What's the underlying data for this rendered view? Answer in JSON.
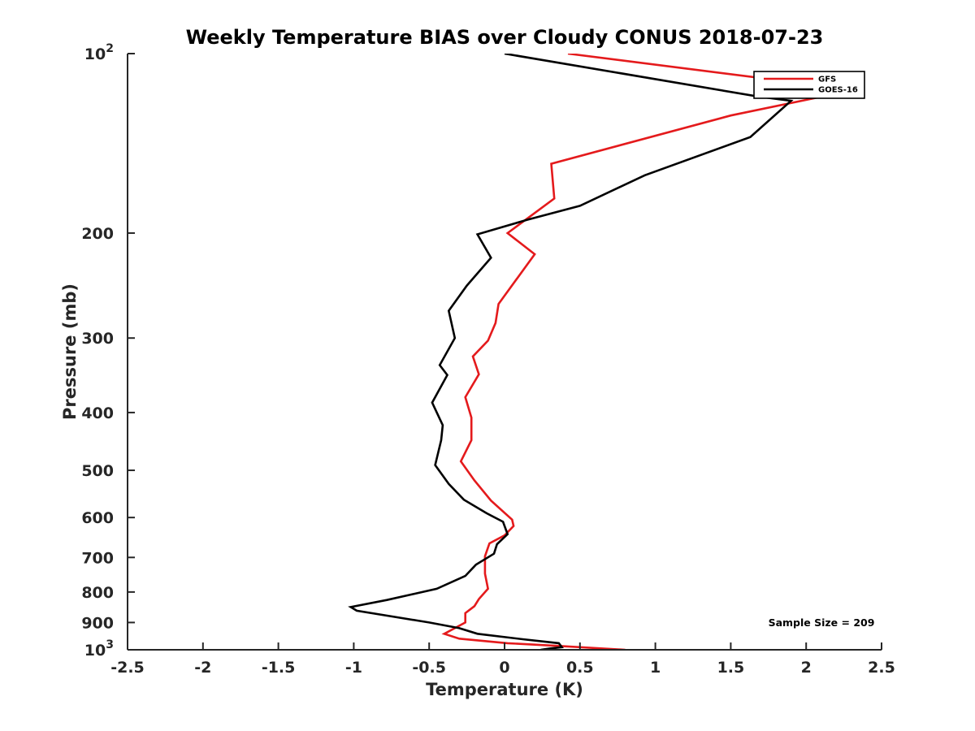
{
  "chart_data": {
    "type": "line",
    "title": "Weekly Temperature BIAS over Cloudy CONUS 2018-07-23",
    "xlabel": "Temperature (K)",
    "ylabel": "Pressure (mb)",
    "xlim": [
      -2.5,
      2.5
    ],
    "ylim": [
      1000,
      100
    ],
    "y_scale": "log",
    "y_reversed": true,
    "grid": false,
    "legend_position": "top-right",
    "x_ticks": [
      -2.5,
      -2,
      -1.5,
      -1,
      -0.5,
      0,
      0.5,
      1,
      1.5,
      2,
      2.5
    ],
    "x_tick_labels": [
      "-2.5",
      "-2",
      "-1.5",
      "-1",
      "-0.5",
      "0",
      "0.5",
      "1",
      "1.5",
      "2",
      "2.5"
    ],
    "y_ticks": [
      100,
      200,
      300,
      400,
      500,
      600,
      700,
      800,
      900,
      1000
    ],
    "y_tick_labels": [
      {
        "base": "10",
        "exp": "2"
      },
      {
        "base": "200",
        "exp": ""
      },
      {
        "base": "300",
        "exp": ""
      },
      {
        "base": "400",
        "exp": ""
      },
      {
        "base": "500",
        "exp": ""
      },
      {
        "base": "600",
        "exp": ""
      },
      {
        "base": "700",
        "exp": ""
      },
      {
        "base": "800",
        "exp": ""
      },
      {
        "base": "900",
        "exp": ""
      },
      {
        "base": "10",
        "exp": "3"
      }
    ],
    "series": [
      {
        "name": "GFS",
        "color": "#e41a1c",
        "points": [
          [
            0.42,
            100
          ],
          [
            2.32,
            115
          ],
          [
            1.5,
            127
          ],
          [
            0.31,
            153
          ],
          [
            0.33,
            175
          ],
          [
            0.02,
            200
          ],
          [
            0.2,
            217
          ],
          [
            0.08,
            239
          ],
          [
            -0.04,
            263
          ],
          [
            -0.06,
            283
          ],
          [
            -0.11,
            303
          ],
          [
            -0.21,
            322
          ],
          [
            -0.17,
            345
          ],
          [
            -0.26,
            377
          ],
          [
            -0.22,
            408
          ],
          [
            -0.22,
            445
          ],
          [
            -0.29,
            483
          ],
          [
            -0.2,
            520
          ],
          [
            -0.09,
            562
          ],
          [
            0.05,
            605
          ],
          [
            0.06,
            620
          ],
          [
            0.0,
            643
          ],
          [
            -0.1,
            663
          ],
          [
            -0.13,
            697
          ],
          [
            -0.13,
            745
          ],
          [
            -0.11,
            790
          ],
          [
            -0.17,
            822
          ],
          [
            -0.2,
            845
          ],
          [
            -0.26,
            868
          ],
          [
            -0.26,
            900
          ],
          [
            -0.4,
            940
          ],
          [
            -0.3,
            958
          ],
          [
            0.02,
            975
          ],
          [
            0.35,
            985
          ],
          [
            0.8,
            1000
          ]
        ]
      },
      {
        "name": "GOES-16",
        "color": "#000000",
        "points": [
          [
            0.0,
            100
          ],
          [
            1.68,
            118
          ],
          [
            1.9,
            120
          ],
          [
            1.63,
            138
          ],
          [
            0.93,
            160
          ],
          [
            0.5,
            180
          ],
          [
            0.15,
            190
          ],
          [
            -0.18,
            201
          ],
          [
            -0.09,
            220
          ],
          [
            -0.25,
            245
          ],
          [
            -0.37,
            270
          ],
          [
            -0.33,
            300
          ],
          [
            -0.43,
            333
          ],
          [
            -0.38,
            346
          ],
          [
            -0.48,
            385
          ],
          [
            -0.41,
            420
          ],
          [
            -0.42,
            445
          ],
          [
            -0.46,
            490
          ],
          [
            -0.37,
            527
          ],
          [
            -0.27,
            560
          ],
          [
            -0.12,
            590
          ],
          [
            -0.01,
            610
          ],
          [
            0.02,
            640
          ],
          [
            -0.05,
            665
          ],
          [
            -0.07,
            690
          ],
          [
            -0.19,
            720
          ],
          [
            -0.26,
            752
          ],
          [
            -0.45,
            790
          ],
          [
            -0.78,
            825
          ],
          [
            -1.02,
            848
          ],
          [
            -0.98,
            860
          ],
          [
            -0.5,
            900
          ],
          [
            -0.3,
            920
          ],
          [
            -0.18,
            940
          ],
          [
            0.12,
            960
          ],
          [
            0.36,
            975
          ],
          [
            0.38,
            990
          ],
          [
            0.3,
            995
          ],
          [
            0.24,
            1000
          ]
        ]
      }
    ],
    "annotations": [
      "Sample Size = 209"
    ]
  }
}
